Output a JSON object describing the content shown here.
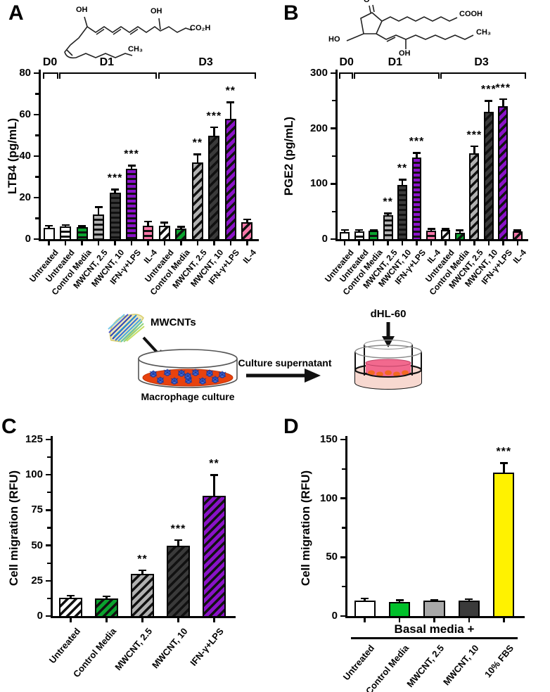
{
  "panels": [
    {
      "letter": "A"
    },
    {
      "letter": "B"
    },
    {
      "letter": "C"
    },
    {
      "letter": "D"
    }
  ],
  "structures": {
    "ltb4": {
      "labels": [
        "OH",
        "OH",
        "CO₂H",
        "CH₃"
      ]
    },
    "pge2": {
      "labels": [
        "O",
        "COOH",
        "HO",
        "OH",
        "CH₃"
      ]
    }
  },
  "diagram": {
    "mwcnts": "MWCNTs",
    "macrophage": "Macrophage culture",
    "supernatant": "Culture supernatant",
    "dhl60": "dHL-60"
  },
  "colors": {
    "green": "#0bа32e",
    "bar_green_hatched": "#0aa32e",
    "bar_green_solid": "#00c02a",
    "bar_gray": "#b0b0b0",
    "bar_dark": "#3a3a3a",
    "bar_purple": "#8a12c8",
    "bar_pink": "#f876a8",
    "bar_yellow": "#fff200",
    "dish_media_red": "#e8420e",
    "cell_blue": "#4a6bd0",
    "well_pink_light": "#f7d8d0",
    "well_pink_insert": "#f2698e",
    "cell_orange": "#f26822",
    "axis_black": "#000000"
  },
  "chart_data": [
    {
      "id": "A",
      "type": "bar",
      "title": "",
      "xlabel": "",
      "ylabel": "LTB4 (pg/mL)",
      "ylim": [
        0,
        80
      ],
      "ytick_step": 20,
      "yminor_step": 10,
      "grid": false,
      "legend": "none",
      "group_brackets": [
        {
          "label": "D0",
          "from": 0,
          "to": 0
        },
        {
          "label": "D1",
          "from": 1,
          "to": 6
        },
        {
          "label": "D3",
          "from": 7,
          "to": 12
        }
      ],
      "categories": [
        "Untreated",
        "Untreated",
        "Control Media",
        "MWCNT, 2.5",
        "MWCNT, 10",
        "IFN-γ+LPS",
        "IL-4",
        "Untreated",
        "Control Media",
        "MWCNT, 2.5",
        "MWCNT, 10",
        "IFN-γ+LPS",
        "IL-4"
      ],
      "values": [
        5.5,
        6,
        5.8,
        12,
        22.5,
        34,
        6.5,
        6.5,
        5,
        37,
        50,
        58,
        8
      ],
      "errors": [
        1,
        0.8,
        0.6,
        3.5,
        1.5,
        1.5,
        2,
        1.5,
        1,
        4,
        4,
        8,
        1.5
      ],
      "sig": [
        "",
        "",
        "",
        "",
        "***",
        "***",
        "",
        "",
        "",
        "**",
        "***",
        "**",
        ""
      ],
      "fills": [
        "#ffffff",
        "#ffffff",
        "#0aa32e",
        "#b0b0b0",
        "#3a3a3a",
        "#8a12c8",
        "#f876a8",
        "#ffffff",
        "#0aa32e",
        "#b0b0b0",
        "#3a3a3a",
        "#8a12c8",
        "#f876a8"
      ],
      "hatches": [
        "none",
        "h",
        "h",
        "h",
        "h",
        "h",
        "h",
        "d",
        "d",
        "d",
        "d",
        "d",
        "d"
      ]
    },
    {
      "id": "B",
      "type": "bar",
      "title": "",
      "xlabel": "",
      "ylabel": "PGE2 (pg/mL)",
      "ylim": [
        0,
        300
      ],
      "ytick_step": 100,
      "yminor_step": 50,
      "grid": false,
      "legend": "none",
      "group_brackets": [
        {
          "label": "D0",
          "from": 0,
          "to": 0
        },
        {
          "label": "D1",
          "from": 1,
          "to": 6
        },
        {
          "label": "D3",
          "from": 7,
          "to": 12
        }
      ],
      "categories": [
        "Untreated",
        "Untreated",
        "Control Media",
        "MWCNT, 2.5",
        "MWCNT, 10",
        "IFN-γ+LPS",
        "IL-4",
        "Untreated",
        "Control Media",
        "MWCNT, 2.5",
        "MWCNT, 10",
        "IFN-γ+LPS",
        "IL-4"
      ],
      "values": [
        13,
        14,
        15,
        43,
        98,
        148,
        15,
        16,
        12,
        155,
        230,
        240,
        14
      ],
      "errors": [
        4,
        3,
        2,
        4,
        10,
        8,
        4,
        3,
        4,
        13,
        20,
        13,
        2
      ],
      "sig": [
        "",
        "",
        "",
        "**",
        "**",
        "***",
        "",
        "",
        "",
        "***",
        "***",
        "***",
        ""
      ],
      "fills": [
        "#ffffff",
        "#ffffff",
        "#0aa32e",
        "#b0b0b0",
        "#3a3a3a",
        "#8a12c8",
        "#f876a8",
        "#ffffff",
        "#0aa32e",
        "#b0b0b0",
        "#3a3a3a",
        "#8a12c8",
        "#f876a8"
      ],
      "hatches": [
        "none",
        "h",
        "h",
        "h",
        "h",
        "h",
        "h",
        "d",
        "d",
        "d",
        "d",
        "d",
        "d"
      ]
    },
    {
      "id": "C",
      "type": "bar",
      "title": "",
      "xlabel": "",
      "ylabel": "Cell migration (RFU)",
      "ylim": [
        0,
        125
      ],
      "ytick_step": 25,
      "yminor_step": 12.5,
      "grid": false,
      "legend": "none",
      "categories": [
        "Untreated",
        "Control Media",
        "MWCNT, 2.5",
        "MWCNT, 10",
        "IFN-γ+LPS"
      ],
      "values": [
        13,
        12.5,
        30,
        50,
        85
      ],
      "errors": [
        1.5,
        1.5,
        2.5,
        4,
        15
      ],
      "sig": [
        "",
        "",
        "**",
        "***",
        "**"
      ],
      "fills": [
        "#ffffff",
        "#0aa32e",
        "#b0b0b0",
        "#3a3a3a",
        "#8a12c8"
      ],
      "hatches": [
        "d",
        "d",
        "d",
        "d",
        "d"
      ]
    },
    {
      "id": "D",
      "type": "bar",
      "title": "",
      "xlabel": "",
      "ylabel": "Cell migration (RFU)",
      "ylim": [
        0,
        150
      ],
      "ytick_step": 50,
      "yminor_step": 25,
      "grid": false,
      "legend": "none",
      "group_label": "Basal media +",
      "categories": [
        "Untreated",
        "Control Media",
        "MWCNT, 2.5",
        "MWCNT, 10",
        "10% FBS"
      ],
      "values": [
        13,
        12,
        13,
        13,
        122
      ],
      "errors": [
        2,
        1.5,
        1,
        1.5,
        8
      ],
      "sig": [
        "",
        "",
        "",
        "",
        "***"
      ],
      "fills": [
        "#ffffff",
        "#00c02a",
        "#a8a8a8",
        "#3a3a3a",
        "#fff200"
      ],
      "hatches": [
        "none",
        "none",
        "none",
        "none",
        "none"
      ]
    }
  ]
}
